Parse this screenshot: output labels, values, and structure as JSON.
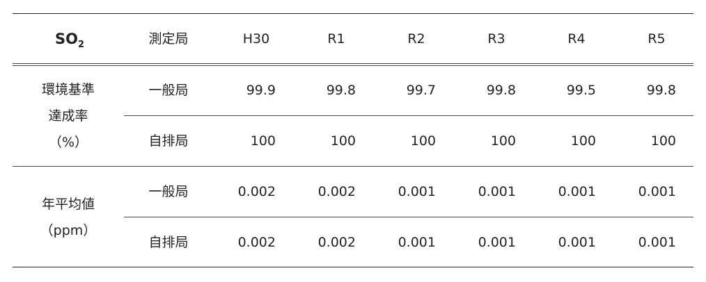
{
  "header": {
    "pollutant": "SO",
    "pollutant_sub": "2",
    "columns": [
      "測定局",
      "H30",
      "R1",
      "R2",
      "R3",
      "R4",
      "R5"
    ]
  },
  "table": {
    "groups": [
      {
        "label_lines": [
          "環境基準",
          "達成率",
          "（%）"
        ],
        "rows": [
          {
            "station": "一般局",
            "values": [
              "99.9",
              "99.8",
              "99.7",
              "99.8",
              "99.5",
              "99.8"
            ]
          },
          {
            "station": "自排局",
            "values": [
              "100",
              "100",
              "100",
              "100",
              "100",
              "100"
            ]
          }
        ]
      },
      {
        "label_lines": [
          "年平均値",
          "（ppm）"
        ],
        "rows": [
          {
            "station": "一般局",
            "values": [
              "0.002",
              "0.002",
              "0.001",
              "0.001",
              "0.001",
              "0.001"
            ]
          },
          {
            "station": "自排局",
            "values": [
              "0.002",
              "0.002",
              "0.001",
              "0.001",
              "0.001",
              "0.001"
            ]
          }
        ]
      }
    ]
  }
}
